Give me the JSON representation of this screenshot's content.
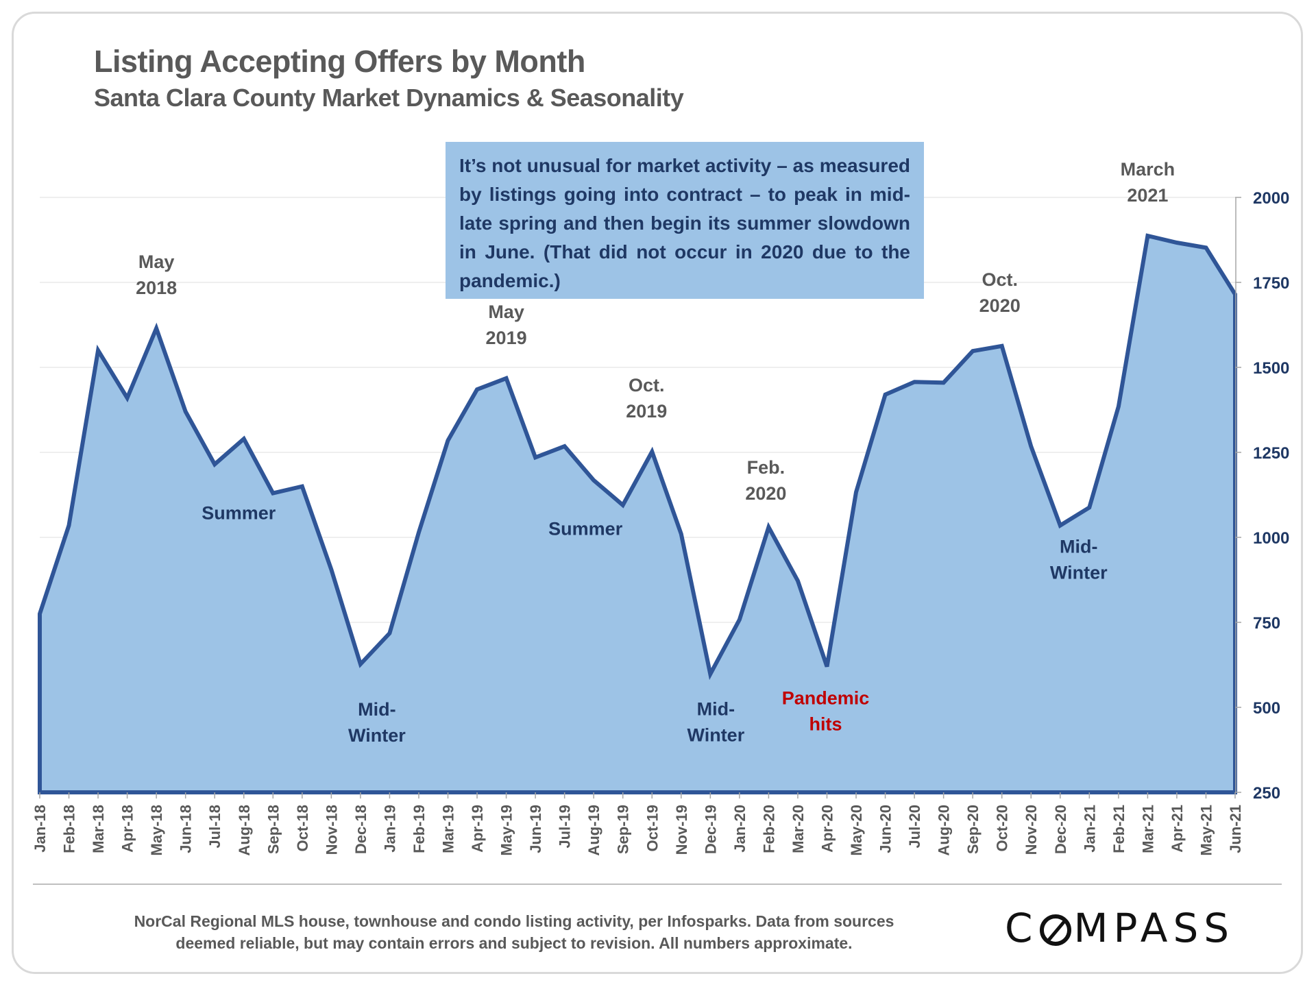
{
  "header": {
    "title": "Listing Accepting Offers by Month",
    "subtitle": "Santa Clara County Market Dynamics & Seasonality"
  },
  "note": {
    "text": "It’s not unusual for market activity – as measured by listings going into contract – to peak in mid-late spring and then begin its summer slowdown in June. (That did not occur in 2020 due to the pandemic.)"
  },
  "footer": {
    "line1": "NorCal Regional MLS house, townhouse and condo listing activity, per Infosparks. Data from sources",
    "line2": "deemed reliable, but may contain errors and subject to revision. All numbers approximate.",
    "logo_before": "C",
    "logo_after": "MPASS"
  },
  "colors": {
    "fill": "#9dc3e6",
    "line": "#2f5597",
    "axis_text": "#1f3864",
    "annotation_gray": "#595959",
    "annotation_navy": "#1f3864",
    "annotation_red": "#c00000"
  },
  "chart_data": {
    "type": "area",
    "title": "Listing Accepting Offers by Month",
    "subtitle": "Santa Clara County Market Dynamics & Seasonality",
    "xlabel": "",
    "ylabel": "",
    "y_axis_position": "right",
    "ylim": [
      250,
      2000
    ],
    "yticks": [
      250,
      500,
      750,
      1000,
      1250,
      1500,
      1750,
      2000
    ],
    "grid": true,
    "categories": [
      "Jan-18",
      "Feb-18",
      "Mar-18",
      "Apr-18",
      "May-18",
      "Jun-18",
      "Jul-18",
      "Aug-18",
      "Sep-18",
      "Oct-18",
      "Nov-18",
      "Dec-18",
      "Jan-19",
      "Feb-19",
      "Mar-19",
      "Apr-19",
      "May-19",
      "Jun-19",
      "Jul-19",
      "Aug-19",
      "Sep-19",
      "Oct-19",
      "Nov-19",
      "Dec-19",
      "Jan-20",
      "Feb-20",
      "Mar-20",
      "Apr-20",
      "May-20",
      "Jun-20",
      "Jul-20",
      "Aug-20",
      "Sep-20",
      "Oct-20",
      "Nov-20",
      "Dec-20",
      "Jan-21",
      "Feb-21",
      "Mar-21",
      "Apr-21",
      "May-21",
      "Jun-21"
    ],
    "series": [
      {
        "name": "Listings Accepting Offers",
        "values": [
          775,
          1035,
          1550,
          1410,
          1615,
          1370,
          1215,
          1290,
          1130,
          1150,
          905,
          627,
          718,
          1015,
          1285,
          1435,
          1468,
          1235,
          1268,
          1168,
          1095,
          1252,
          1010,
          598,
          758,
          1030,
          872,
          620,
          1133,
          1420,
          1457,
          1455,
          1548,
          1563,
          1268,
          1035,
          1088,
          1385,
          1887,
          1867,
          1852,
          1715
        ]
      }
    ],
    "annotations": [
      {
        "lines": [
          "May",
          "2018"
        ],
        "category": "May-18",
        "style": "gray",
        "placement": "above"
      },
      {
        "lines": [
          "Summer"
        ],
        "category": "Jul-18",
        "style": "navy",
        "placement": "inside"
      },
      {
        "lines": [
          "Mid-",
          "Winter"
        ],
        "category": "Dec-18",
        "style": "navy",
        "placement": "below"
      },
      {
        "lines": [
          "May",
          "2019"
        ],
        "category": "May-19",
        "style": "gray",
        "placement": "above"
      },
      {
        "lines": [
          "Summer"
        ],
        "category": "Aug-19",
        "style": "navy",
        "placement": "inside"
      },
      {
        "lines": [
          "Oct.",
          "2019"
        ],
        "category": "Oct-19",
        "style": "gray",
        "placement": "above"
      },
      {
        "lines": [
          "Mid-",
          "Winter"
        ],
        "category": "Dec-19",
        "style": "navy",
        "placement": "below"
      },
      {
        "lines": [
          "Feb.",
          "2020"
        ],
        "category": "Feb-20",
        "style": "gray",
        "placement": "above"
      },
      {
        "lines": [
          "Pandemic",
          "hits"
        ],
        "category": "Apr-20",
        "style": "red",
        "placement": "below"
      },
      {
        "lines": [
          "Oct.",
          "2020"
        ],
        "category": "Oct-20",
        "style": "gray",
        "placement": "above"
      },
      {
        "lines": [
          "Mid-",
          "Winter"
        ],
        "category": "Dec-20",
        "style": "navy",
        "placement": "below"
      },
      {
        "lines": [
          "March",
          "2021"
        ],
        "category": "Mar-21",
        "style": "gray",
        "placement": "above"
      }
    ]
  }
}
